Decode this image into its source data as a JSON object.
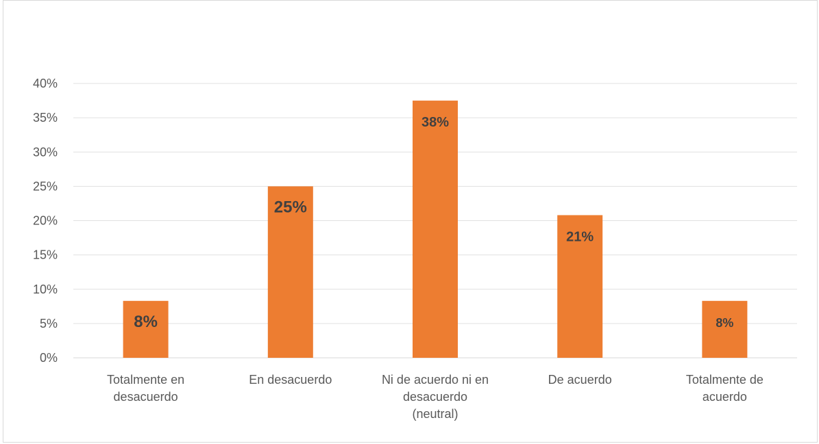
{
  "chart_data": {
    "type": "bar",
    "categories": [
      [
        "Totalmente en",
        "desacuerdo"
      ],
      [
        "En desacuerdo"
      ],
      [
        "Ni de acuerdo ni en",
        "desacuerdo",
        "(neutral)"
      ],
      [
        "De acuerdo"
      ],
      [
        "Totalmente de",
        "acuerdo"
      ]
    ],
    "values": [
      8.3,
      25.0,
      37.5,
      20.8,
      8.3
    ],
    "data_labels": [
      "8%",
      "25%",
      "38%",
      "21%",
      "8%"
    ],
    "yticks": [
      "0%",
      "5%",
      "10%",
      "15%",
      "20%",
      "25%",
      "30%",
      "35%",
      "40%"
    ],
    "ylim": [
      0,
      40
    ],
    "grid": true,
    "legend": "none",
    "bar_color": "#ED7D31",
    "title": "",
    "xlabel": "",
    "ylabel": ""
  }
}
